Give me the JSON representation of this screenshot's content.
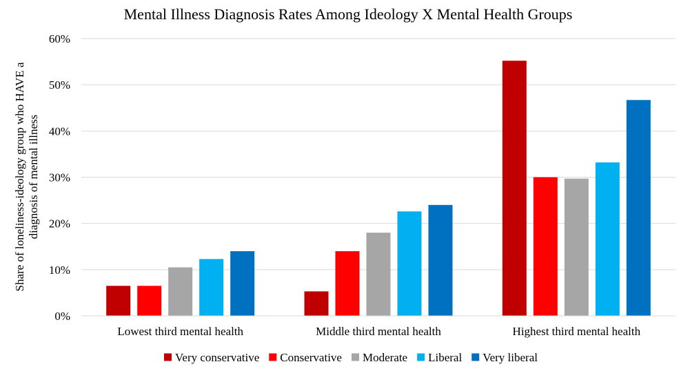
{
  "chart_data": {
    "type": "bar",
    "title": "Mental Illness Diagnosis Rates Among Ideology X Mental Health Groups",
    "ylabel_lines": [
      "Share of loneliness-ideology group who HAVE a",
      "diagnosis of mental illness"
    ],
    "xlabel": "",
    "categories": [
      "Lowest third mental health",
      "Middle third mental health",
      "Highest third mental health"
    ],
    "ylim": [
      0,
      0.6
    ],
    "yticks": [
      0,
      0.1,
      0.2,
      0.3,
      0.4,
      0.5,
      0.6
    ],
    "ytick_labels": [
      "0%",
      "10%",
      "20%",
      "30%",
      "40%",
      "50%",
      "60%"
    ],
    "grid": true,
    "legend_position": "bottom",
    "series": [
      {
        "name": "Very conservative",
        "color": "#C00000",
        "values": [
          0.065,
          0.053,
          0.552
        ]
      },
      {
        "name": "Conservative",
        "color": "#FF0000",
        "values": [
          0.065,
          0.14,
          0.3
        ]
      },
      {
        "name": "Moderate",
        "color": "#A6A6A6",
        "values": [
          0.105,
          0.18,
          0.297
        ]
      },
      {
        "name": "Liberal",
        "color": "#00B0F0",
        "values": [
          0.123,
          0.226,
          0.332
        ]
      },
      {
        "name": "Very liberal",
        "color": "#0070C0",
        "values": [
          0.14,
          0.24,
          0.467
        ]
      }
    ]
  }
}
